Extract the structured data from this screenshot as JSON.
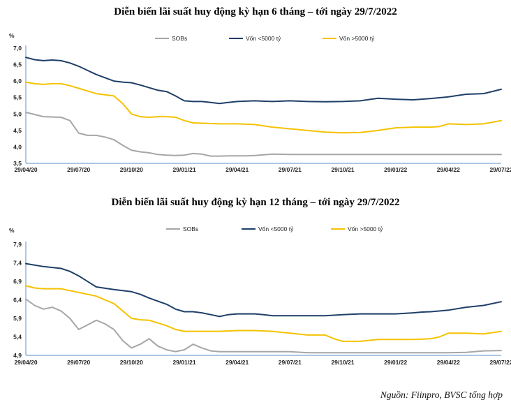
{
  "source": "Nguồn: Fiinpro, BVSC tổng hợp",
  "colors": {
    "sobs": "#a6a6a6",
    "small": "#1f3f68",
    "large": "#f5c200",
    "axis": "#5b8fc9"
  },
  "chart_data": [
    {
      "type": "line",
      "title": "Diễn biến lãi suất huy động kỳ hạn 6 tháng – tới ngày 29/7/2022",
      "ylabel": "%",
      "ylim": [
        3.5,
        7.0
      ],
      "yticks": [
        "3,5",
        "4,0",
        "4,5",
        "5,0",
        "5,5",
        "6,0",
        "6,5",
        "7,0"
      ],
      "ytick_values": [
        3.5,
        4.0,
        4.5,
        5.0,
        5.5,
        6.0,
        6.5,
        7.0
      ],
      "xlim": [
        0,
        27
      ],
      "x_labels": [
        "29/04/20",
        "29/07/20",
        "29/10/20",
        "29/01/21",
        "29/04/21",
        "29/07/21",
        "29/10/21",
        "29/01/22",
        "29/04/22",
        "29/07/22"
      ],
      "x_label_positions": [
        0,
        3,
        6,
        9,
        12,
        15,
        18,
        21,
        24,
        27
      ],
      "series": [
        {
          "name": "SOBs",
          "color_key": "sobs",
          "x": [
            0,
            1,
            2,
            2.5,
            3,
            3.5,
            4,
            4.5,
            5,
            5.5,
            6,
            6.5,
            7,
            7.5,
            8,
            8.5,
            9,
            9.5,
            10,
            10.5,
            11,
            11.5,
            12,
            12.5,
            13,
            13.5,
            14,
            15,
            16,
            17,
            18,
            19,
            20,
            21,
            22,
            23,
            24,
            25,
            26,
            27
          ],
          "values": [
            5.05,
            4.92,
            4.9,
            4.8,
            4.42,
            4.35,
            4.35,
            4.3,
            4.22,
            4.05,
            3.9,
            3.85,
            3.82,
            3.77,
            3.75,
            3.74,
            3.75,
            3.8,
            3.78,
            3.72,
            3.72,
            3.73,
            3.73,
            3.73,
            3.74,
            3.76,
            3.78,
            3.77,
            3.77,
            3.77,
            3.77,
            3.77,
            3.77,
            3.77,
            3.77,
            3.77,
            3.77,
            3.77,
            3.77,
            3.77
          ]
        },
        {
          "name": "Vốn <5000 tỷ",
          "color_key": "small",
          "x": [
            0,
            0.5,
            1,
            1.5,
            2,
            2.5,
            3,
            4,
            5,
            5.5,
            6,
            6.5,
            7,
            7.5,
            8,
            8.5,
            9,
            9.5,
            10,
            10.5,
            11,
            11.5,
            12,
            13,
            14,
            15,
            16,
            17,
            18,
            19,
            20,
            21,
            22,
            23,
            24,
            25,
            26,
            27
          ],
          "values": [
            6.72,
            6.65,
            6.62,
            6.64,
            6.62,
            6.55,
            6.45,
            6.2,
            6.0,
            5.97,
            5.95,
            5.88,
            5.8,
            5.72,
            5.68,
            5.55,
            5.4,
            5.38,
            5.38,
            5.35,
            5.32,
            5.35,
            5.38,
            5.4,
            5.38,
            5.4,
            5.38,
            5.37,
            5.38,
            5.4,
            5.48,
            5.45,
            5.43,
            5.47,
            5.52,
            5.6,
            5.62,
            5.75
          ]
        },
        {
          "name": "Vốn >5000 tỷ",
          "color_key": "large",
          "x": [
            0,
            0.5,
            1,
            1.5,
            2,
            2.5,
            3,
            4,
            5,
            5.5,
            6,
            6.5,
            7,
            7.5,
            8,
            8.5,
            9,
            9.5,
            10,
            11,
            12,
            13,
            14,
            15,
            16,
            17,
            18,
            19,
            20,
            21,
            22,
            23,
            23.5,
            24,
            25,
            26,
            27
          ],
          "values": [
            5.97,
            5.92,
            5.9,
            5.92,
            5.92,
            5.86,
            5.78,
            5.62,
            5.55,
            5.32,
            5.0,
            4.92,
            4.9,
            4.92,
            4.92,
            4.9,
            4.8,
            4.73,
            4.72,
            4.7,
            4.7,
            4.68,
            4.6,
            4.55,
            4.5,
            4.45,
            4.43,
            4.44,
            4.5,
            4.58,
            4.6,
            4.6,
            4.62,
            4.7,
            4.68,
            4.7,
            4.8
          ]
        }
      ],
      "legend": [
        "SOBs",
        "Vốn <5000 tỷ",
        "Vốn >5000 tỷ"
      ]
    },
    {
      "type": "line",
      "title": "Diễn biến lãi suất huy động kỳ hạn 12 tháng – tới ngày 29/7/2022",
      "ylabel": "%",
      "ylim": [
        4.9,
        7.9
      ],
      "yticks": [
        "4,9",
        "5,4",
        "5,9",
        "6,4",
        "6,9",
        "7,4",
        "7,9"
      ],
      "ytick_values": [
        4.9,
        5.4,
        5.9,
        6.4,
        6.9,
        7.4,
        7.9
      ],
      "xlim": [
        0,
        27
      ],
      "x_labels": [
        "29/04/20",
        "29/07/20",
        "29/10/20",
        "29/01/21",
        "29/04/21",
        "29/07/21",
        "29/10/21",
        "29/01/22",
        "29/04/22",
        "29/07/22"
      ],
      "x_label_positions": [
        0,
        3,
        6,
        9,
        12,
        15,
        18,
        21,
        24,
        27
      ],
      "series": [
        {
          "name": "SOBs",
          "color_key": "sobs",
          "x": [
            0,
            0.5,
            1,
            1.5,
            2,
            2.5,
            3,
            3.5,
            4,
            4.5,
            5,
            5.5,
            6,
            6.5,
            7,
            7.5,
            8,
            8.5,
            9,
            9.5,
            10,
            10.5,
            11,
            12,
            13,
            14,
            15,
            16,
            17,
            18,
            19,
            20,
            21,
            22,
            23,
            24,
            25,
            26,
            27
          ],
          "values": [
            6.42,
            6.25,
            6.15,
            6.2,
            6.1,
            5.9,
            5.6,
            5.72,
            5.85,
            5.75,
            5.6,
            5.3,
            5.1,
            5.2,
            5.35,
            5.15,
            5.05,
            5.0,
            5.05,
            5.2,
            5.1,
            5.02,
            5.0,
            5.0,
            5.0,
            5.0,
            5.0,
            4.97,
            4.97,
            4.97,
            4.97,
            4.97,
            4.97,
            4.97,
            4.97,
            4.97,
            4.98,
            5.02,
            5.03
          ]
        },
        {
          "name": "Vốn <5000 tỷ",
          "color_key": "small",
          "x": [
            0,
            1,
            2,
            2.5,
            3,
            4,
            5,
            6,
            6.5,
            7,
            8,
            8.5,
            9,
            9.5,
            10,
            10.5,
            11,
            11.5,
            12,
            13,
            13.5,
            14,
            15,
            16,
            17,
            18,
            19,
            20,
            21,
            22,
            22.5,
            23,
            24,
            25,
            26,
            27
          ],
          "values": [
            7.38,
            7.3,
            7.25,
            7.17,
            7.05,
            6.75,
            6.68,
            6.62,
            6.55,
            6.45,
            6.28,
            6.15,
            6.08,
            6.08,
            6.05,
            6.0,
            5.95,
            6.0,
            6.02,
            6.02,
            6.0,
            5.97,
            5.97,
            5.97,
            5.97,
            6.0,
            6.02,
            6.02,
            6.02,
            6.05,
            6.07,
            6.08,
            6.12,
            6.2,
            6.25,
            6.35
          ]
        },
        {
          "name": "Vốn >5000 tỷ",
          "color_key": "large",
          "x": [
            0,
            0.5,
            1,
            2,
            2.5,
            3,
            4,
            5,
            5.5,
            6,
            6.5,
            7,
            8,
            8.5,
            9,
            10,
            11,
            12,
            13,
            14,
            15,
            16,
            17,
            17.5,
            18,
            19,
            20,
            21,
            22,
            23,
            23.5,
            24,
            25,
            26,
            27
          ],
          "values": [
            6.78,
            6.72,
            6.7,
            6.7,
            6.65,
            6.6,
            6.5,
            6.3,
            6.1,
            5.9,
            5.86,
            5.85,
            5.7,
            5.6,
            5.55,
            5.55,
            5.55,
            5.57,
            5.57,
            5.55,
            5.5,
            5.45,
            5.45,
            5.35,
            5.28,
            5.28,
            5.33,
            5.33,
            5.33,
            5.35,
            5.4,
            5.5,
            5.5,
            5.48,
            5.55
          ]
        }
      ],
      "legend": [
        "SOBs",
        "Vốn <5000 tỷ",
        "Vốn >5000 tỷ"
      ]
    }
  ]
}
